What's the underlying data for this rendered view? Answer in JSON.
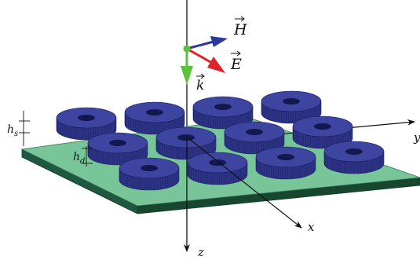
{
  "labels": {
    "H": "H",
    "E": "E",
    "k": "k",
    "x": "x",
    "y": "y",
    "z": "z",
    "hs_base": "h",
    "hs_sub": "s",
    "hd_base": "h",
    "hd_sub": "d"
  },
  "colors": {
    "substrate_top": "#78c59a",
    "substrate_side": "#1e5840",
    "substrate_edge": "#0f3a28",
    "disk_top": "#3d45a0",
    "disk_side": "#262c78",
    "disk_hole": "#141850",
    "H_vector": "#2a3a9c",
    "E_vector": "#e0222a",
    "k_vector": "#5cc23a",
    "origin_dot": "#5cc23a",
    "axis": "#111111"
  },
  "disks": [
    {
      "row": 1,
      "col": 1
    },
    {
      "row": 1,
      "col": 2
    },
    {
      "row": 1,
      "col": 3
    },
    {
      "row": 1,
      "col": 4
    },
    {
      "row": 2,
      "col": 1
    },
    {
      "row": 2,
      "col": 2
    },
    {
      "row": 2,
      "col": 3
    },
    {
      "row": 2,
      "col": 4
    },
    {
      "row": 3,
      "col": 1
    },
    {
      "row": 3,
      "col": 2
    },
    {
      "row": 3,
      "col": 3
    },
    {
      "row": 3,
      "col": 4
    }
  ]
}
